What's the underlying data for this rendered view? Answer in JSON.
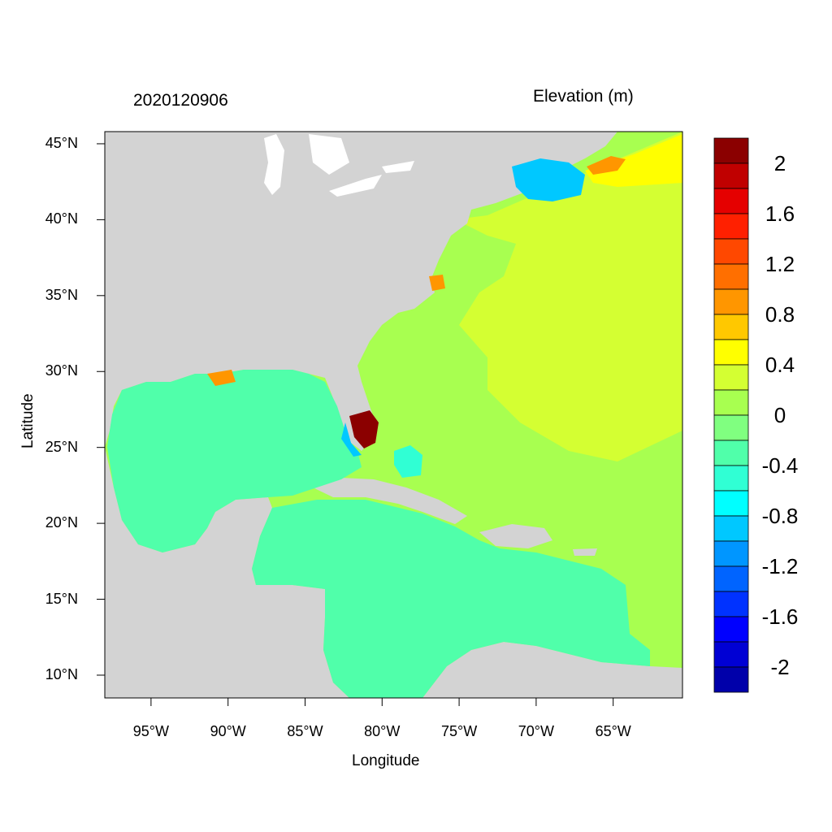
{
  "header": {
    "date": "2020120906",
    "variable": "Elevation (m)"
  },
  "axes": {
    "xlabel": "Longitude",
    "ylabel": "Latitude",
    "lon_range": [
      -98.0,
      -60.5
    ],
    "lat_range": [
      8.5,
      45.8
    ],
    "xticks": [
      {
        "value": -95,
        "label": "95°W"
      },
      {
        "value": -90,
        "label": "90°W"
      },
      {
        "value": -85,
        "label": "85°W"
      },
      {
        "value": -80,
        "label": "80°W"
      },
      {
        "value": -75,
        "label": "75°W"
      },
      {
        "value": -70,
        "label": "70°W"
      },
      {
        "value": -65,
        "label": "65°W"
      }
    ],
    "yticks": [
      {
        "value": 45,
        "label": "45°N"
      },
      {
        "value": 40,
        "label": "40°N"
      },
      {
        "value": 35,
        "label": "35°N"
      },
      {
        "value": 30,
        "label": "30°N"
      },
      {
        "value": 25,
        "label": "25°N"
      },
      {
        "value": 20,
        "label": "20°N"
      },
      {
        "value": 15,
        "label": "15°N"
      },
      {
        "value": 10,
        "label": "10°N"
      }
    ]
  },
  "colorbar": {
    "colors": [
      "#8b0000",
      "#c00000",
      "#e50000",
      "#ff2000",
      "#ff4800",
      "#ff6f00",
      "#ff9600",
      "#ffc800",
      "#ffff00",
      "#d4ff32",
      "#a8ff50",
      "#80ff80",
      "#50ffaa",
      "#30ffd4",
      "#00ffff",
      "#00c8ff",
      "#0096ff",
      "#0064ff",
      "#0032ff",
      "#0000ff",
      "#0000d4",
      "#0000aa"
    ],
    "labels": [
      {
        "label": "2",
        "index": 1
      },
      {
        "label": "1.6",
        "index": 3
      },
      {
        "label": "1.2",
        "index": 5
      },
      {
        "label": "0.8",
        "index": 7
      },
      {
        "label": "0.4",
        "index": 9
      },
      {
        "label": "0",
        "index": 11
      },
      {
        "label": "-0.4",
        "index": 13
      },
      {
        "label": "-0.8",
        "index": 15
      },
      {
        "label": "-1.2",
        "index": 17
      },
      {
        "label": "-1.6",
        "index": 19
      },
      {
        "label": "-2",
        "index": 21
      }
    ]
  },
  "colors": {
    "land": "#d3d3d3",
    "gulf": "#50ffaa",
    "caribbean": "#50ffaa",
    "atlantic_near": "#a8ff50",
    "atlantic_far": "#d4ff32",
    "surge_high": "#8b0000",
    "surge_mid": "#ff9600",
    "low": "#00c8ff"
  }
}
